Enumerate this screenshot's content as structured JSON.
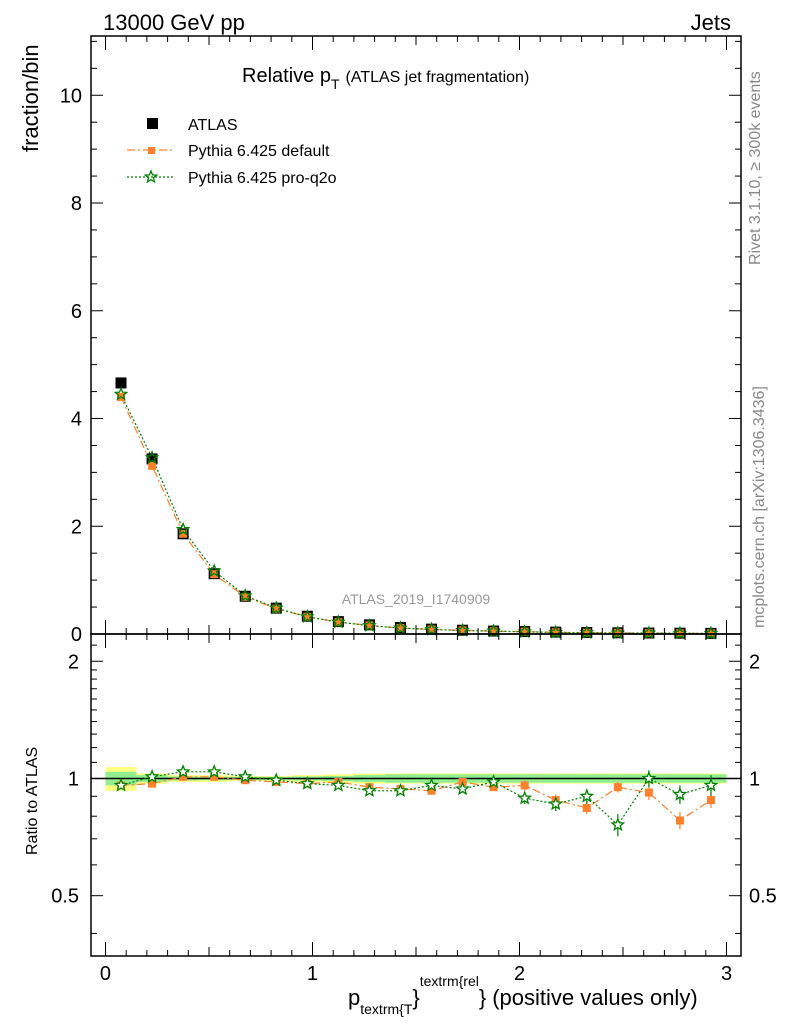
{
  "header": {
    "left": "13000 GeV pp",
    "right": "Jets"
  },
  "title": {
    "main": "Relative p",
    "sub": "T",
    "rest": "(ATLAS jet fragmentation)"
  },
  "side": {
    "rivet": "Rivet 3.1.10, ≥ 300k events",
    "mcplots": "mcplots.cern.ch [arXiv:1306.3436]"
  },
  "analysis_label": "ATLAS_2019_I1740909",
  "xaxis": {
    "main": "p",
    "sub": "textrm{T",
    "sup": "textrm{rel",
    "brace1": "}",
    "brace2": "}",
    "rest": "(positive values only)"
  },
  "chart_data": [
    {
      "type": "scatter",
      "panel": "main",
      "ylabel": "fraction/bin",
      "xlim": [
        -0.07,
        3.07
      ],
      "ylim": [
        0,
        11.1
      ],
      "yticks": [
        0,
        2,
        4,
        6,
        8,
        10
      ],
      "yticklabels": [
        "0",
        "2",
        "4",
        "6",
        "8",
        "10"
      ],
      "x": [
        0.075,
        0.225,
        0.375,
        0.525,
        0.675,
        0.825,
        0.975,
        1.125,
        1.275,
        1.425,
        1.575,
        1.725,
        1.875,
        2.025,
        2.175,
        2.325,
        2.475,
        2.625,
        2.775,
        2.925
      ],
      "series": [
        {
          "name": "ATLAS",
          "color": "#000000",
          "marker": "square",
          "values": [
            4.66,
            3.25,
            1.86,
            1.12,
            0.7,
            0.48,
            0.33,
            0.23,
            0.17,
            0.12,
            0.09,
            0.07,
            0.055,
            0.045,
            0.035,
            0.028,
            0.022,
            0.018,
            0.015,
            0.012
          ]
        },
        {
          "name": "Pythia 6.425 default",
          "color": "#ff7f2a",
          "marker": "filled-square",
          "values": [
            4.4,
            3.12,
            1.86,
            1.11,
            0.69,
            0.47,
            0.32,
            0.22,
            0.16,
            0.11,
            0.085,
            0.068,
            0.052,
            0.043,
            0.031,
            0.024,
            0.021,
            0.016,
            0.012,
            0.011
          ]
        },
        {
          "name": "Pythia 6.425 pro-q2o",
          "color": "#008000",
          "marker": "star",
          "values": [
            4.45,
            3.27,
            1.94,
            1.17,
            0.71,
            0.48,
            0.32,
            0.22,
            0.155,
            0.11,
            0.085,
            0.065,
            0.053,
            0.04,
            0.03,
            0.025,
            0.017,
            0.018,
            0.014,
            0.012
          ]
        }
      ]
    },
    {
      "type": "line",
      "panel": "ratio",
      "ylabel": "Ratio to ATLAS",
      "xlim": [
        -0.07,
        3.07
      ],
      "ylim": [
        0.35,
        2.35
      ],
      "yticks": [
        0.5,
        1,
        2
      ],
      "yticklabels": [
        "0.5",
        "1",
        "2"
      ],
      "xticks": [
        0,
        1,
        2,
        3
      ],
      "xticklabels": [
        "0",
        "1",
        "2",
        "3"
      ],
      "x": [
        0.075,
        0.225,
        0.375,
        0.525,
        0.675,
        0.825,
        0.975,
        1.125,
        1.275,
        1.425,
        1.575,
        1.725,
        1.875,
        2.025,
        2.175,
        2.325,
        2.475,
        2.625,
        2.775,
        2.925
      ],
      "bands": {
        "stat_half_width": [
          0.04,
          0.02,
          0.012,
          0.01,
          0.01,
          0.01,
          0.012,
          0.015,
          0.02,
          0.025,
          0.025,
          0.025,
          0.025,
          0.025,
          0.025,
          0.025,
          0.025,
          0.025,
          0.025,
          0.025
        ],
        "total_half_width": [
          0.07,
          0.03,
          0.02,
          0.02,
          0.015,
          0.015,
          0.02,
          0.025,
          0.03,
          0.03,
          0.03,
          0.03,
          0.03,
          0.03,
          0.03,
          0.03,
          0.03,
          0.03,
          0.03,
          0.03
        ],
        "stat_color": "#90ee90",
        "total_color": "#ffff80"
      },
      "series": [
        {
          "name": "Pythia 6.425 default",
          "color": "#ff7f2a",
          "values": [
            0.96,
            0.97,
            1.01,
            1.01,
            0.99,
            0.98,
            0.97,
            0.98,
            0.95,
            0.94,
            0.93,
            0.98,
            0.95,
            0.96,
            0.88,
            0.84,
            0.95,
            0.92,
            0.78,
            0.88
          ],
          "errors": [
            0.01,
            0.01,
            0.01,
            0.01,
            0.01,
            0.01,
            0.01,
            0.01,
            0.01,
            0.01,
            0.015,
            0.02,
            0.02,
            0.03,
            0.03,
            0.03,
            0.03,
            0.04,
            0.04,
            0.04
          ]
        },
        {
          "name": "Pythia 6.425 pro-q2o",
          "color": "#008000",
          "values": [
            0.96,
            1.01,
            1.04,
            1.04,
            1.01,
            0.99,
            0.97,
            0.96,
            0.93,
            0.93,
            0.96,
            0.94,
            0.98,
            0.89,
            0.86,
            0.9,
            0.76,
            1.0,
            0.91,
            0.96
          ],
          "errors": [
            0.01,
            0.01,
            0.01,
            0.01,
            0.01,
            0.01,
            0.01,
            0.01,
            0.015,
            0.02,
            0.02,
            0.02,
            0.025,
            0.03,
            0.035,
            0.04,
            0.05,
            0.05,
            0.05,
            0.06
          ]
        }
      ]
    }
  ]
}
